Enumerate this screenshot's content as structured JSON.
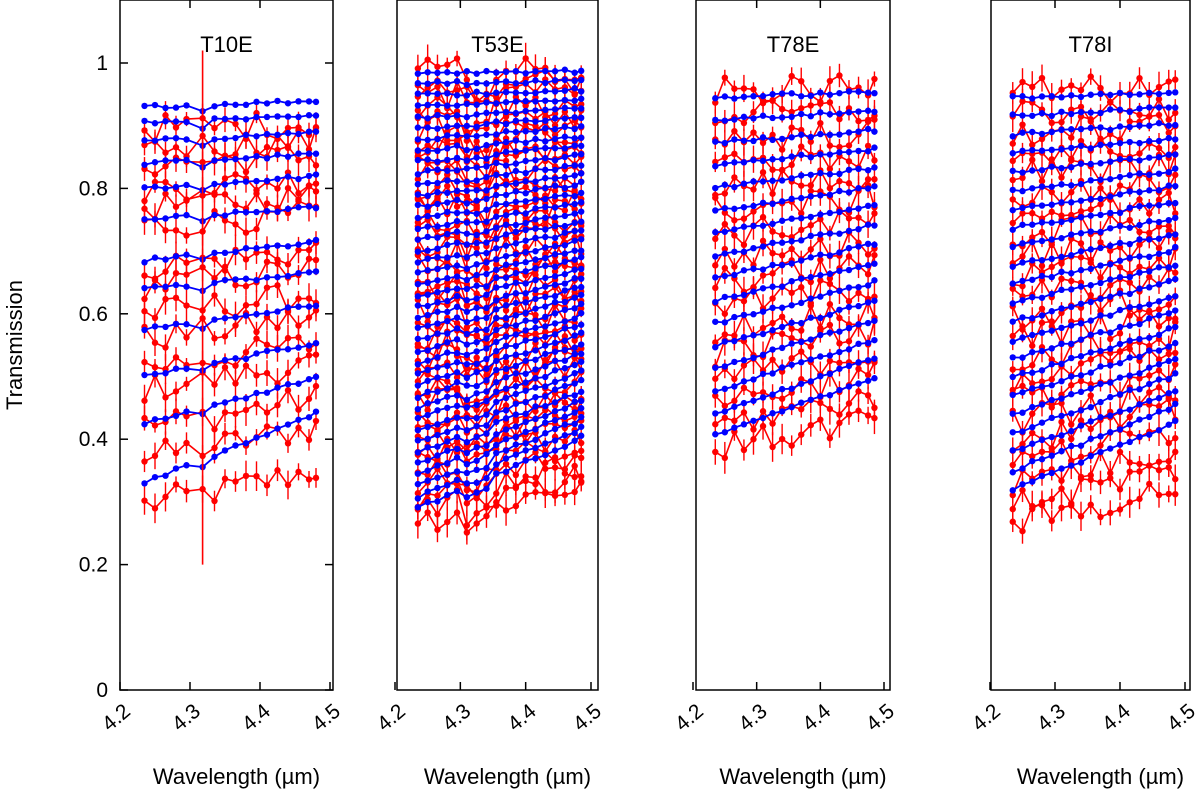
{
  "figure": {
    "ylabel": "Transmission",
    "xlabel": "Wavelength (µm)",
    "colors": {
      "red": "#ff0000",
      "blue": "#0000ff",
      "axis": "#000000"
    }
  },
  "chart_data": [
    {
      "type": "line",
      "title": "T10E",
      "xlabel": "Wavelength (µm)",
      "ylabel": "Transmission",
      "xlim": [
        4.2,
        4.5
      ],
      "ylim": [
        0,
        1.1
      ],
      "xticks": [
        "4.2",
        "4.3",
        "4.4",
        "4.5"
      ],
      "yticks": [
        "0",
        "0.2",
        "0.4",
        "0.6",
        "0.8",
        "1"
      ],
      "x": [
        4.235,
        4.25,
        4.265,
        4.28,
        4.295,
        4.318,
        4.335,
        4.35,
        4.365,
        4.38,
        4.395,
        4.41,
        4.425,
        4.44,
        4.455,
        4.47,
        4.48
      ],
      "bad_x": 4.318,
      "bad_range": [
        0.2,
        1.02
      ],
      "red_level": [
        0.295,
        0.37,
        0.42,
        0.48,
        0.515,
        0.56,
        0.6,
        0.645,
        0.675,
        0.74,
        0.77,
        0.8,
        0.84,
        0.865,
        0.895
      ],
      "blue_start": [
        0.33,
        0.425,
        0.5,
        0.575,
        0.64,
        0.685,
        0.75,
        0.8,
        0.84,
        0.875,
        0.905,
        0.93
      ],
      "blue_end": [
        0.445,
        0.5,
        0.555,
        0.615,
        0.665,
        0.715,
        0.77,
        0.82,
        0.855,
        0.89,
        0.915,
        0.94
      ],
      "n_red": 15,
      "n_blue": 12
    },
    {
      "type": "line",
      "title": "T53E",
      "xlabel": "Wavelength (µm)",
      "xlim": [
        4.2,
        4.5
      ],
      "ylim": [
        0,
        1.1
      ],
      "xticks": [
        "4.2",
        "4.3",
        "4.4",
        "4.5"
      ],
      "x": [
        4.235,
        4.25,
        4.265,
        4.28,
        4.295,
        4.31,
        4.325,
        4.34,
        4.355,
        4.37,
        4.385,
        4.4,
        4.415,
        4.43,
        4.445,
        4.46,
        4.475,
        4.485
      ],
      "red_range": [
        0.27,
        0.985
      ],
      "blue_range": [
        0.29,
        0.985
      ],
      "n_red": 40,
      "n_blue": 40
    },
    {
      "type": "line",
      "title": "T78E",
      "xlabel": "Wavelength (µm)",
      "xlim": [
        4.2,
        4.5
      ],
      "ylim": [
        0,
        1.1
      ],
      "xticks": [
        "4.2",
        "4.3",
        "4.4",
        "4.5"
      ],
      "x": [
        4.235,
        4.25,
        4.265,
        4.28,
        4.295,
        4.31,
        4.325,
        4.34,
        4.355,
        4.37,
        4.385,
        4.4,
        4.415,
        4.43,
        4.445,
        4.46,
        4.475,
        4.485
      ],
      "red_range": [
        0.385,
        0.955
      ],
      "blue_range": [
        0.405,
        0.945
      ],
      "n_red": 16,
      "n_blue": 16
    },
    {
      "type": "line",
      "title": "T78I",
      "xlabel": "Wavelength (µm)",
      "xlim": [
        4.2,
        4.5
      ],
      "ylim": [
        0,
        1.1
      ],
      "xticks": [
        "4.2",
        "4.3",
        "4.4",
        "4.5"
      ],
      "x": [
        4.235,
        4.25,
        4.265,
        4.28,
        4.295,
        4.31,
        4.325,
        4.34,
        4.355,
        4.37,
        4.385,
        4.4,
        4.415,
        4.43,
        4.445,
        4.46,
        4.475,
        4.485
      ],
      "red_range": [
        0.265,
        0.955
      ],
      "blue_range": [
        0.32,
        0.945
      ],
      "n_red": 22,
      "n_blue": 22
    }
  ]
}
